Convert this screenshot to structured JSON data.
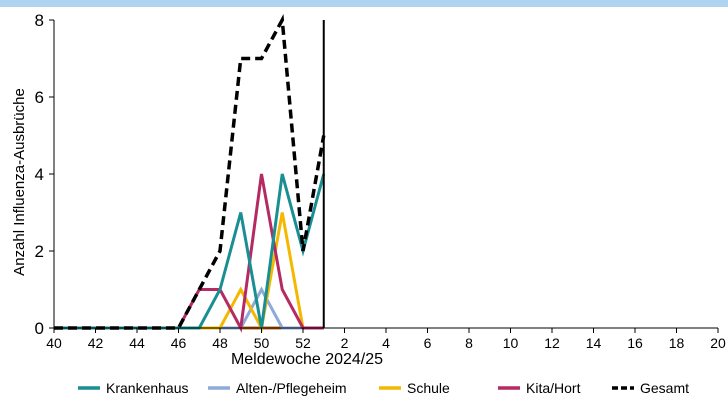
{
  "chart_data": {
    "type": "line",
    "title": "",
    "xlabel": "Meldewoche 2024/25",
    "ylabel": "Anzahl Influenza-Ausbrüche",
    "ylim": [
      0,
      8
    ],
    "yticks": [
      "0",
      "2",
      "4",
      "6",
      "8"
    ],
    "xticks": [
      "40",
      "42",
      "44",
      "46",
      "48",
      "50",
      "52",
      "2",
      "4",
      "6",
      "8",
      "10",
      "12",
      "14",
      "16",
      "18",
      "20"
    ],
    "current_week_marker": "1",
    "legend_position": "bottom",
    "weeks": [
      "40",
      "41",
      "42",
      "43",
      "44",
      "45",
      "46",
      "47",
      "48",
      "49",
      "50",
      "51",
      "52",
      "1"
    ],
    "series": [
      {
        "name": "Krankenhaus",
        "color": "#1a8f93",
        "dash": "solid",
        "values": [
          0,
          0,
          0,
          0,
          0,
          0,
          0,
          0,
          1,
          3,
          0,
          4,
          2,
          4
        ]
      },
      {
        "name": "Alten-/Pflegeheim",
        "color": "#8eaad8",
        "dash": "solid",
        "values": [
          0,
          0,
          0,
          0,
          0,
          0,
          0,
          0,
          0,
          0,
          1,
          0,
          0,
          0
        ]
      },
      {
        "name": "Schule",
        "color": "#f5b800",
        "dash": "solid",
        "values": [
          0,
          0,
          0,
          0,
          0,
          0,
          0,
          0,
          0,
          1,
          0,
          3,
          0,
          0
        ]
      },
      {
        "name": "Kita/Hort",
        "color": "#b52a62",
        "dash": "solid",
        "values": [
          0,
          0,
          0,
          0,
          0,
          0,
          0,
          1,
          1,
          0,
          4,
          1,
          0,
          0
        ]
      },
      {
        "name": "Gesamt",
        "color": "#000000",
        "dash": "dashed",
        "values": [
          0,
          0,
          0,
          0,
          0,
          0,
          0,
          1,
          2,
          7,
          7,
          8,
          2,
          5
        ]
      },
      {
        "name": "",
        "color": "#c4651a",
        "dash": "solid",
        "values": [
          0,
          0,
          0,
          0,
          0,
          0,
          0,
          0,
          0,
          0,
          0,
          0,
          0,
          0
        ]
      }
    ]
  }
}
